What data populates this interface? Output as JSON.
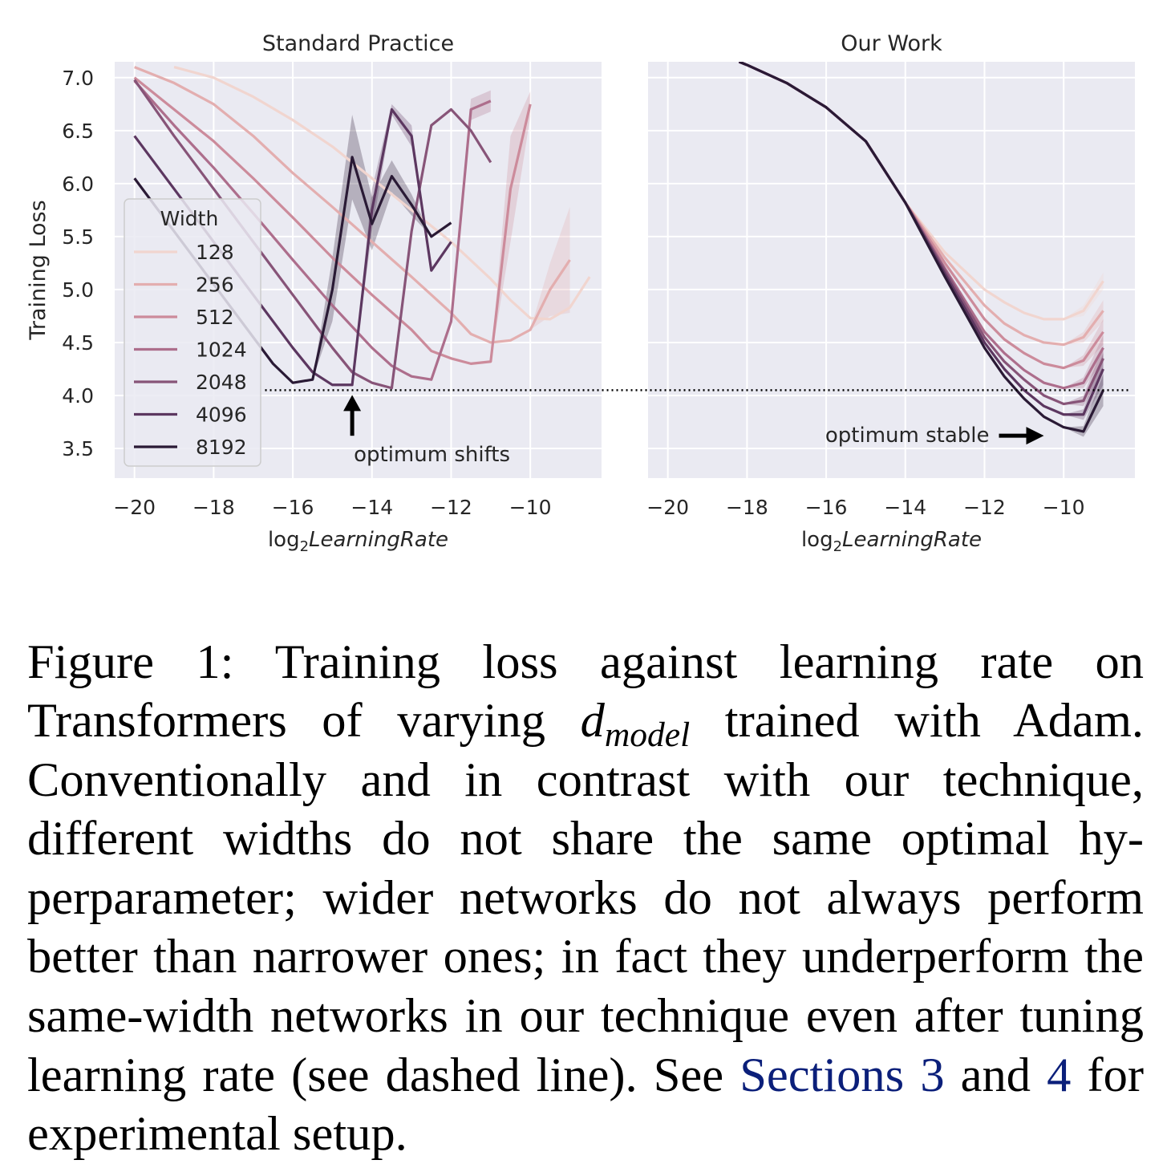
{
  "chart_data": [
    {
      "type": "line",
      "title": "Standard Practice",
      "xlabel_prefix": "log",
      "xlabel_sub": "2",
      "xlabel_main": "LearningRate",
      "ylabel": "Training Loss",
      "xlim": [
        -20.5,
        -8.2
      ],
      "ylim": [
        3.22,
        7.15
      ],
      "xticks": [
        -20,
        -18,
        -16,
        -14,
        -12,
        -10
      ],
      "yticks": [
        3.5,
        4.0,
        4.5,
        5.0,
        5.5,
        6.0,
        6.5,
        7.0
      ],
      "grid": true,
      "legend": {
        "title": "Width",
        "placement": "center-left"
      },
      "reference_line": {
        "y": 4.05,
        "style": "dotted"
      },
      "annotation": {
        "text": "optimum shifts",
        "arrow": "up",
        "x": -14.5,
        "y": 4.0
      },
      "series": [
        {
          "name": "128",
          "color": "#f1d5cf",
          "x": [
            -19,
            -18,
            -17,
            -16,
            -15,
            -14,
            -13,
            -12,
            -11,
            -10.5,
            -10,
            -9.5,
            -9,
            -8.5
          ],
          "y": [
            7.1,
            7.0,
            6.82,
            6.6,
            6.35,
            6.05,
            5.75,
            5.45,
            5.1,
            4.9,
            4.73,
            4.72,
            4.83,
            5.12
          ],
          "band": [
            null,
            null,
            null,
            null,
            null,
            null,
            null,
            null,
            null,
            null,
            null,
            null,
            null,
            null
          ]
        },
        {
          "name": "256",
          "color": "#e3aeaf",
          "x": [
            -20,
            -19,
            -18,
            -17,
            -16,
            -15,
            -14,
            -13,
            -12,
            -11.5,
            -11,
            -10.5,
            -10,
            -9.5,
            -9
          ],
          "y": [
            7.1,
            6.95,
            6.75,
            6.45,
            6.1,
            5.78,
            5.45,
            5.12,
            4.78,
            4.58,
            4.5,
            4.52,
            4.62,
            5.0,
            5.28
          ],
          "band": [
            null,
            null,
            null,
            null,
            null,
            null,
            null,
            null,
            null,
            null,
            null,
            null,
            null,
            0.25,
            0.5
          ]
        },
        {
          "name": "512",
          "color": "#cc8b9b",
          "x": [
            -20,
            -19,
            -18,
            -17,
            -16,
            -15,
            -14,
            -13,
            -12.5,
            -12,
            -11.5,
            -11,
            -10.5,
            -10
          ],
          "y": [
            7.0,
            6.7,
            6.4,
            6.05,
            5.68,
            5.3,
            4.95,
            4.62,
            4.42,
            4.35,
            4.3,
            4.32,
            5.95,
            6.75
          ],
          "band": [
            null,
            null,
            null,
            null,
            null,
            null,
            null,
            null,
            null,
            null,
            null,
            null,
            0.5,
            0.12
          ]
        },
        {
          "name": "1024",
          "color": "#ad6e8c",
          "x": [
            -20,
            -19,
            -18,
            -17,
            -16,
            -15,
            -14,
            -13.5,
            -13,
            -12.5,
            -12,
            -11.5,
            -11
          ],
          "y": [
            6.97,
            6.55,
            6.15,
            5.72,
            5.28,
            4.85,
            4.45,
            4.28,
            4.18,
            4.15,
            4.7,
            6.7,
            6.78
          ],
          "band": [
            null,
            null,
            null,
            null,
            null,
            null,
            null,
            null,
            null,
            null,
            null,
            0.1,
            0.1
          ]
        },
        {
          "name": "2048",
          "color": "#875478",
          "x": [
            -20,
            -19,
            -18,
            -17,
            -16,
            -15,
            -14.5,
            -14,
            -13.5,
            -13,
            -12.5,
            -12,
            -11.5,
            -11
          ],
          "y": [
            6.98,
            6.45,
            5.95,
            5.45,
            4.95,
            4.45,
            4.22,
            4.12,
            4.07,
            5.55,
            6.55,
            6.7,
            6.5,
            6.2
          ],
          "band": [
            null,
            null,
            null,
            null,
            null,
            null,
            null,
            null,
            null,
            null,
            null,
            null,
            null,
            null
          ]
        },
        {
          "name": "4096",
          "color": "#5c3760",
          "x": [
            -20,
            -19,
            -18,
            -17,
            -16,
            -15.5,
            -15,
            -14.5,
            -14,
            -13.5,
            -13,
            -12.5,
            -12
          ],
          "y": [
            6.45,
            5.95,
            5.45,
            4.95,
            4.45,
            4.22,
            4.1,
            4.1,
            5.75,
            6.7,
            6.45,
            5.18,
            5.45
          ],
          "band": [
            null,
            null,
            null,
            null,
            null,
            null,
            null,
            null,
            0.2,
            0.05,
            0.1,
            null,
            null
          ]
        },
        {
          "name": "8192",
          "color": "#2a1a35",
          "x": [
            -20,
            -19,
            -18,
            -17,
            -16.5,
            -16,
            -15.5,
            -15,
            -14.5,
            -14,
            -13.5,
            -13,
            -12.5,
            -12
          ],
          "y": [
            6.05,
            5.55,
            5.05,
            4.55,
            4.3,
            4.12,
            4.15,
            5.0,
            6.25,
            5.62,
            6.07,
            5.8,
            5.5,
            5.63
          ],
          "band": [
            null,
            null,
            null,
            null,
            null,
            null,
            null,
            0.3,
            0.4,
            0.25,
            0.15,
            0.1,
            null,
            null
          ]
        }
      ]
    },
    {
      "type": "line",
      "title": "Our Work",
      "xlabel_prefix": "log",
      "xlabel_sub": "2",
      "xlabel_main": "LearningRate",
      "ylabel": "",
      "xlim": [
        -20.5,
        -8.2
      ],
      "ylim": [
        3.22,
        7.15
      ],
      "xticks": [
        -20,
        -18,
        -16,
        -14,
        -12,
        -10
      ],
      "grid": true,
      "reference_line": {
        "y": 4.05,
        "style": "dotted"
      },
      "annotation": {
        "text": "optimum stable",
        "arrow": "right",
        "x": -10.5,
        "y": 3.62
      },
      "series": [
        {
          "name": "128",
          "color": "#f1d5cf",
          "x": [
            -18.2,
            -18,
            -17,
            -16,
            -15,
            -14,
            -13,
            -12,
            -11.5,
            -11,
            -10.5,
            -10,
            -9.5,
            -9
          ],
          "y": [
            7.15,
            7.12,
            6.95,
            6.72,
            6.4,
            5.82,
            5.35,
            5.0,
            4.88,
            4.78,
            4.72,
            4.72,
            4.8,
            5.08
          ],
          "band": [
            null,
            null,
            null,
            null,
            null,
            null,
            null,
            null,
            null,
            null,
            null,
            null,
            0.05,
            0.08
          ]
        },
        {
          "name": "256",
          "color": "#e3aeaf",
          "x": [
            -18.2,
            -18,
            -17,
            -16,
            -15,
            -14,
            -13,
            -12,
            -11.5,
            -11,
            -10.5,
            -10,
            -9.5,
            -9
          ],
          "y": [
            7.15,
            7.12,
            6.95,
            6.72,
            6.4,
            5.82,
            5.3,
            4.85,
            4.68,
            4.57,
            4.5,
            4.48,
            4.55,
            4.8
          ],
          "band": [
            null,
            null,
            null,
            null,
            null,
            null,
            null,
            null,
            null,
            null,
            null,
            null,
            0.05,
            0.1
          ]
        },
        {
          "name": "512",
          "color": "#cc8b9b",
          "x": [
            -18.2,
            -18,
            -17,
            -16,
            -15,
            -14,
            -13,
            -12,
            -11.5,
            -11,
            -10.5,
            -10,
            -9.5,
            -9
          ],
          "y": [
            7.15,
            7.12,
            6.95,
            6.72,
            6.4,
            5.82,
            5.25,
            4.72,
            4.53,
            4.4,
            4.3,
            4.26,
            4.33,
            4.6
          ],
          "band": [
            null,
            null,
            null,
            null,
            null,
            null,
            null,
            null,
            null,
            null,
            null,
            null,
            0.05,
            0.12
          ]
        },
        {
          "name": "1024",
          "color": "#ad6e8c",
          "x": [
            -18.2,
            -18,
            -17,
            -16,
            -15,
            -14,
            -13,
            -12,
            -11.5,
            -11,
            -10.5,
            -10,
            -9.5,
            -9
          ],
          "y": [
            7.15,
            7.12,
            6.95,
            6.72,
            6.4,
            5.82,
            5.2,
            4.6,
            4.4,
            4.24,
            4.12,
            4.07,
            4.12,
            4.45
          ],
          "band": [
            null,
            null,
            null,
            null,
            null,
            null,
            null,
            null,
            null,
            null,
            null,
            null,
            0.05,
            0.12
          ]
        },
        {
          "name": "2048",
          "color": "#875478",
          "x": [
            -18.2,
            -18,
            -17,
            -16,
            -15,
            -14,
            -13,
            -12,
            -11.5,
            -11,
            -10.5,
            -10,
            -9.5,
            -9
          ],
          "y": [
            7.15,
            7.12,
            6.95,
            6.72,
            6.4,
            5.82,
            5.18,
            4.55,
            4.32,
            4.15,
            4.0,
            3.92,
            3.95,
            4.35
          ],
          "band": [
            null,
            null,
            null,
            null,
            null,
            null,
            null,
            null,
            null,
            null,
            null,
            null,
            0.05,
            0.12
          ]
        },
        {
          "name": "4096",
          "color": "#5c3760",
          "x": [
            -18.2,
            -18,
            -17,
            -16,
            -15,
            -14,
            -13,
            -12,
            -11.5,
            -11,
            -10.5,
            -10,
            -9.5,
            -9
          ],
          "y": [
            7.15,
            7.12,
            6.95,
            6.72,
            6.4,
            5.82,
            5.15,
            4.5,
            4.25,
            4.05,
            3.9,
            3.82,
            3.82,
            4.25
          ],
          "band": [
            null,
            null,
            null,
            null,
            null,
            null,
            null,
            null,
            null,
            null,
            null,
            null,
            0.05,
            0.15
          ]
        },
        {
          "name": "8192",
          "color": "#2a1a35",
          "x": [
            -18.2,
            -18,
            -17,
            -16,
            -15,
            -14,
            -13,
            -12,
            -11.5,
            -11,
            -10.5,
            -10,
            -9.5,
            -9
          ],
          "y": [
            7.15,
            7.12,
            6.95,
            6.72,
            6.4,
            5.82,
            5.12,
            4.45,
            4.18,
            3.97,
            3.8,
            3.7,
            3.66,
            4.05
          ],
          "band": [
            null,
            null,
            null,
            null,
            null,
            null,
            null,
            null,
            null,
            null,
            null,
            null,
            0.05,
            0.15
          ]
        }
      ]
    }
  ],
  "caption": {
    "lead": "Figure 1:  Training loss against learning rate on Transformers of varying ",
    "math_main": "d",
    "math_sub": "model",
    "mid": " trained with Adam. Conventionally and in contrast with our technique, different widths do not share the same optimal hy­perparameter; wider networks do not always per­form better than narrower ones; in fact they under­perform the same-width networks in our technique even after tuning learning rate (see dashed line). See ",
    "ref1": "Sections 3",
    "and": " and ",
    "ref2": "4",
    "tail": " for experimental setup."
  },
  "colors": {
    "axes_background": "#eaeaf2",
    "grid": "#ffffff",
    "reference_line": "#000000",
    "link": "#0b1f7a"
  }
}
